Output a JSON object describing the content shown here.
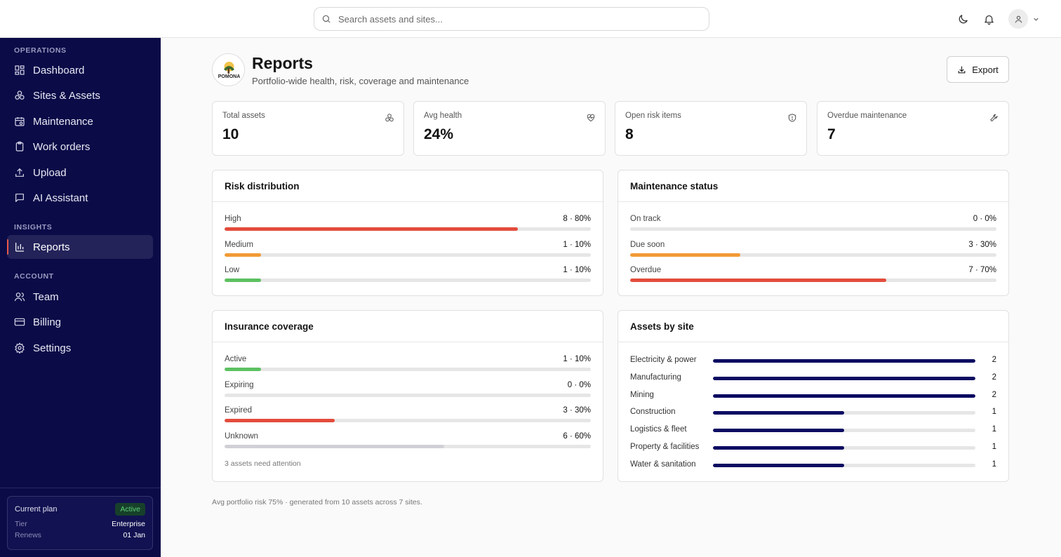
{
  "search": {
    "placeholder": "Search assets and sites..."
  },
  "header_icons": [
    "moon-icon",
    "bell-icon",
    "user-icon",
    "chevron-down-icon"
  ],
  "sidebar": {
    "sections": [
      "OPERATIONS",
      "INSIGHTS",
      "ACCOUNT"
    ],
    "operations": [
      {
        "label": "Dashboard",
        "icon": "grid-icon"
      },
      {
        "label": "Sites & Assets",
        "icon": "boxes-icon"
      },
      {
        "label": "Maintenance",
        "icon": "calendar-icon"
      },
      {
        "label": "Work orders",
        "icon": "clipboard-icon"
      },
      {
        "label": "Upload",
        "icon": "upload-icon"
      },
      {
        "label": "AI Assistant",
        "icon": "chat-icon"
      }
    ],
    "insights": [
      {
        "label": "Reports",
        "icon": "bar-chart-icon",
        "active": true
      }
    ],
    "account": [
      {
        "label": "Team",
        "icon": "users-icon"
      },
      {
        "label": "Billing",
        "icon": "card-icon"
      },
      {
        "label": "Settings",
        "icon": "gear-icon"
      }
    ],
    "plan": {
      "title": "Current plan",
      "status": "Active",
      "tier_label": "Tier",
      "tier_value": "Enterprise",
      "renews_label": "Renews",
      "renews_value": "01 Jan"
    }
  },
  "page": {
    "logo_text": "POMONA",
    "title": "Reports",
    "subtitle": "Portfolio-wide health, risk, coverage and maintenance",
    "export_label": "Export"
  },
  "kpis": [
    {
      "label": "Total assets",
      "value": "10",
      "icon": "boxes-icon"
    },
    {
      "label": "Avg health",
      "value": "24%",
      "icon": "heart-pulse-icon"
    },
    {
      "label": "Open risk items",
      "value": "8",
      "icon": "shield-icon"
    },
    {
      "label": "Overdue maintenance",
      "value": "7",
      "icon": "wrench-icon"
    }
  ],
  "risk_distribution": {
    "title": "Risk distribution",
    "rows": [
      {
        "label": "High",
        "value": "8 · 80%",
        "pct": 80,
        "color": "#e34c3c"
      },
      {
        "label": "Medium",
        "value": "1 · 10%",
        "pct": 10,
        "color": "#f29a35"
      },
      {
        "label": "Low",
        "value": "1 · 10%",
        "pct": 10,
        "color": "#5cc161"
      }
    ]
  },
  "maintenance_status": {
    "title": "Maintenance status",
    "rows": [
      {
        "label": "On track",
        "value": "0 · 0%",
        "pct": 0,
        "color": "#5cc161"
      },
      {
        "label": "Due soon",
        "value": "3 · 30%",
        "pct": 30,
        "color": "#f29a35"
      },
      {
        "label": "Overdue",
        "value": "7 · 70%",
        "pct": 70,
        "color": "#e34c3c"
      }
    ]
  },
  "insurance_coverage": {
    "title": "Insurance coverage",
    "rows": [
      {
        "label": "Active",
        "value": "1 · 10%",
        "pct": 10,
        "color": "#5cc161"
      },
      {
        "label": "Expiring",
        "value": "0 · 0%",
        "pct": 0,
        "color": "#f29a35"
      },
      {
        "label": "Expired",
        "value": "3 · 30%",
        "pct": 30,
        "color": "#e34c3c"
      },
      {
        "label": "Unknown",
        "value": "6 · 60%",
        "pct": 60,
        "color": "#d0d0d6"
      }
    ],
    "note": "3 assets need attention"
  },
  "assets_by_site": {
    "title": "Assets by site",
    "max": 2,
    "rows": [
      {
        "label": "Electricity & power",
        "count": 2
      },
      {
        "label": "Manufacturing",
        "count": 2
      },
      {
        "label": "Mining",
        "count": 2
      },
      {
        "label": "Construction",
        "count": 1
      },
      {
        "label": "Logistics & fleet",
        "count": 1
      },
      {
        "label": "Property & facilities",
        "count": 1
      },
      {
        "label": "Water & sanitation",
        "count": 1
      }
    ]
  },
  "footer_note": "Avg portfolio risk 75% · generated from 10 assets across 7 sites."
}
